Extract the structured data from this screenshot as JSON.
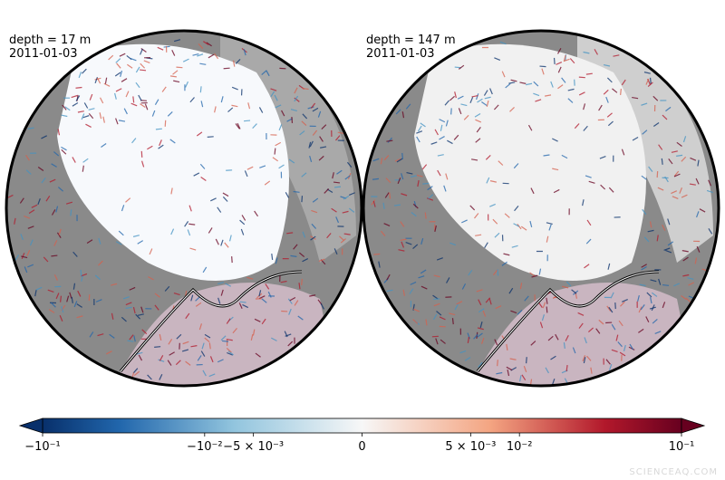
{
  "panels": [
    {
      "depth": "depth =  17 m",
      "date": "2011-01-03"
    },
    {
      "depth": "depth = 147 m",
      "date": "2011-01-03"
    }
  ],
  "colorbar": {
    "lim": [
      -0.1,
      0.1
    ],
    "ticks": [
      {
        "value": -0.1,
        "label": "−10⁻¹"
      },
      {
        "value": -0.01,
        "label": "−10⁻²"
      },
      {
        "value": -0.005,
        "label": "−5 × 10⁻³"
      },
      0,
      {
        "value": 0.005,
        "label": "5 × 10⁻³"
      },
      {
        "value": 0.01,
        "label": "10⁻²"
      },
      {
        "value": 0.1,
        "label": "10⁻¹"
      }
    ]
  },
  "watermark": "SCIENCEAQ.COM"
}
